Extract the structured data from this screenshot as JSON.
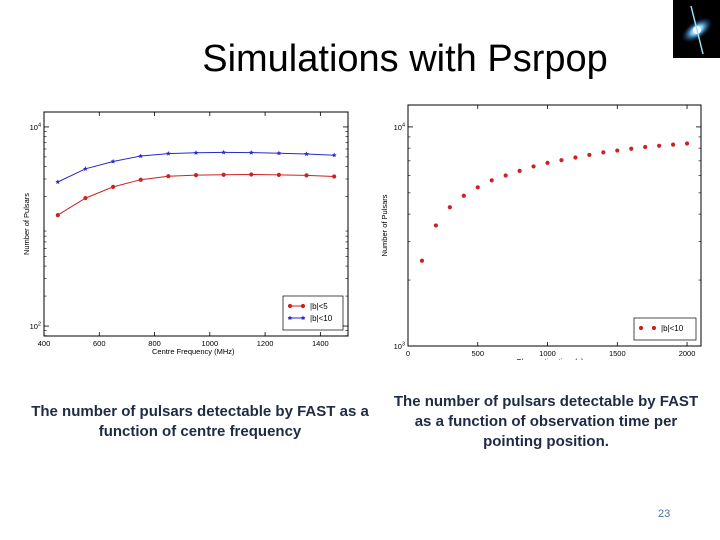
{
  "slide": {
    "title": "Simulations with Psrpop",
    "caption_left": "The number of pulsars detectable by FAST as a function of centre frequency",
    "caption_right": "The number of pulsars detectable by FAST as a function of observation time per pointing position.",
    "page_number": "23"
  },
  "logo": {
    "icon": "galaxy-icon"
  },
  "chart_data": [
    {
      "type": "line",
      "xlabel": "Centre Frequency (MHz)",
      "ylabel": "Number of Pulsars",
      "xlim": [
        400,
        1500
      ],
      "ylog": true,
      "ylim_log10": [
        1.9,
        4.15
      ],
      "xticks": [
        400,
        600,
        800,
        1000,
        1200,
        1400
      ],
      "yticks": [
        {
          "label": "10",
          "exp": "4",
          "value": 10000
        },
        {
          "label": "10",
          "exp": "2",
          "value": 100
        }
      ],
      "legend_position": "lower-right",
      "x": [
        450,
        550,
        650,
        750,
        850,
        950,
        1050,
        1150,
        1250,
        1350,
        1450
      ],
      "series": [
        {
          "name": "|b|<5",
          "color": "#cc2222",
          "marker": "circle",
          "values": [
            1300,
            1930,
            2500,
            2950,
            3200,
            3280,
            3310,
            3330,
            3300,
            3260,
            3180
          ]
        },
        {
          "name": "|b|<10",
          "color": "#2a2acc",
          "marker": "star",
          "values": [
            2800,
            3800,
            4500,
            5100,
            5400,
            5500,
            5550,
            5520,
            5450,
            5350,
            5200
          ]
        }
      ]
    },
    {
      "type": "scatter",
      "xlabel": "Observation time (s)",
      "ylabel": "Number of Pulsars",
      "xlim": [
        0,
        2100
      ],
      "ylog": true,
      "ylim_log10": [
        3,
        4.1
      ],
      "xticks": [
        0,
        500,
        1000,
        1500,
        2000
      ],
      "yticks": [
        {
          "label": "10",
          "exp": "4",
          "value": 10000
        },
        {
          "label": "10",
          "exp": "3",
          "value": 1000
        }
      ],
      "legend_position": "lower-right",
      "series": [
        {
          "name": "|b|<10",
          "color": "#cc2222",
          "marker": "circle",
          "x": [
            100,
            200,
            300,
            400,
            500,
            600,
            700,
            800,
            900,
            1000,
            1100,
            1200,
            1300,
            1400,
            1500,
            1600,
            1700,
            1800,
            1900,
            2000
          ],
          "values": [
            2450,
            3550,
            4300,
            4850,
            5300,
            5700,
            6000,
            6300,
            6600,
            6850,
            7050,
            7250,
            7450,
            7650,
            7800,
            7950,
            8100,
            8200,
            8300,
            8400
          ]
        }
      ]
    }
  ]
}
